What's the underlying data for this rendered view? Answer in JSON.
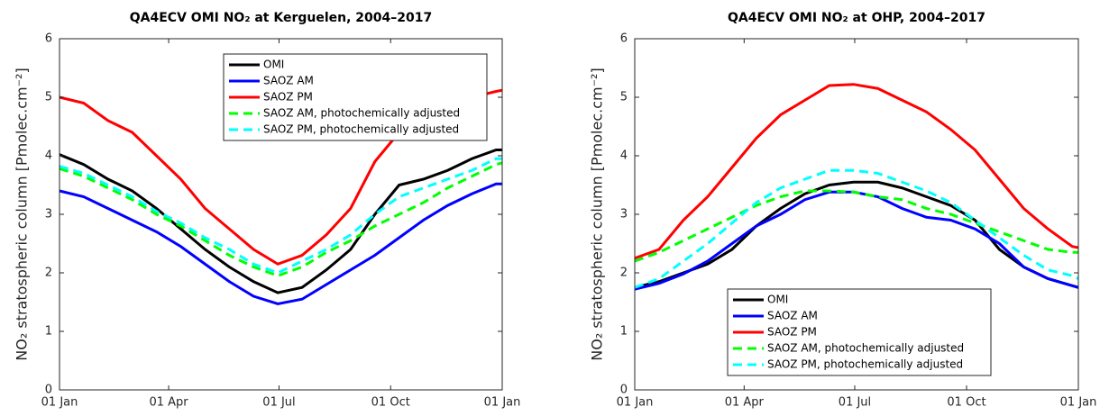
{
  "chart_data": [
    {
      "type": "line",
      "title": "QA4ECV OMI NO₂ at Kerguelen, 2004–2017",
      "y_label": "NO₂ stratospheric column [Pmolec.cm⁻²]",
      "x": [
        0,
        20,
        40,
        60,
        80,
        100,
        120,
        140,
        160,
        180,
        200,
        220,
        240,
        260,
        280,
        300,
        320,
        340,
        360,
        365
      ],
      "xlim": [
        0,
        365
      ],
      "xticks": [
        {
          "value": 0,
          "label": "01 Jan"
        },
        {
          "value": 90,
          "label": "01 Apr"
        },
        {
          "value": 181,
          "label": "01 Jul"
        },
        {
          "value": 273,
          "label": "01 Oct"
        },
        {
          "value": 365,
          "label": "01 Jan"
        }
      ],
      "ylim": [
        0,
        6
      ],
      "yticks": [
        0,
        1,
        2,
        3,
        4,
        5,
        6
      ],
      "grid": false,
      "legend": "upper center",
      "series": [
        {
          "name": "OMI",
          "color": "#000000",
          "style": "solid",
          "values": [
            4.02,
            3.85,
            3.6,
            3.4,
            3.1,
            2.75,
            2.4,
            2.1,
            1.85,
            1.66,
            1.75,
            2.05,
            2.4,
            3.0,
            3.5,
            3.6,
            3.75,
            3.95,
            4.1,
            4.1
          ]
        },
        {
          "name": "SAOZ AM",
          "color": "#0000ff",
          "style": "solid",
          "values": [
            3.4,
            3.3,
            3.1,
            2.9,
            2.7,
            2.45,
            2.15,
            1.85,
            1.6,
            1.47,
            1.55,
            1.8,
            2.05,
            2.3,
            2.6,
            2.9,
            3.15,
            3.35,
            3.52,
            3.52
          ]
        },
        {
          "name": "SAOZ PM",
          "color": "#ff0000",
          "style": "solid",
          "values": [
            5.0,
            4.9,
            4.6,
            4.4,
            4.0,
            3.6,
            3.1,
            2.75,
            2.4,
            2.15,
            2.3,
            2.65,
            3.1,
            3.9,
            4.4,
            4.7,
            4.9,
            5.0,
            5.1,
            5.12
          ]
        },
        {
          "name": "SAOZ AM, photochemically adjusted",
          "color": "#00ff00",
          "style": "dashed",
          "values": [
            3.78,
            3.65,
            3.45,
            3.25,
            3.0,
            2.8,
            2.55,
            2.3,
            2.1,
            1.95,
            2.1,
            2.35,
            2.55,
            2.8,
            3.0,
            3.2,
            3.45,
            3.65,
            3.85,
            3.88
          ]
        },
        {
          "name": "SAOZ PM, photochemically adjusted",
          "color": "#00ffff",
          "style": "dashed",
          "values": [
            3.82,
            3.7,
            3.5,
            3.3,
            3.05,
            2.85,
            2.6,
            2.4,
            2.15,
            2.0,
            2.2,
            2.4,
            2.65,
            3.0,
            3.3,
            3.45,
            3.6,
            3.75,
            3.95,
            3.95
          ]
        }
      ]
    },
    {
      "type": "line",
      "title": "QA4ECV OMI NO₂ at OHP, 2004–2017",
      "y_label": "NO₂ stratospheric column [Pmolec.cm⁻²]",
      "x": [
        0,
        20,
        40,
        60,
        80,
        100,
        120,
        140,
        160,
        180,
        200,
        220,
        240,
        260,
        280,
        300,
        320,
        340,
        360,
        365
      ],
      "xlim": [
        0,
        365
      ],
      "xticks": [
        {
          "value": 0,
          "label": "01 Jan"
        },
        {
          "value": 90,
          "label": "01 Apr"
        },
        {
          "value": 181,
          "label": "01 Jul"
        },
        {
          "value": 273,
          "label": "01 Oct"
        },
        {
          "value": 365,
          "label": "01 Jan"
        }
      ],
      "ylim": [
        0,
        6
      ],
      "yticks": [
        0,
        1,
        2,
        3,
        4,
        5,
        6
      ],
      "grid": false,
      "legend": "lower center",
      "series": [
        {
          "name": "OMI",
          "color": "#000000",
          "style": "solid",
          "values": [
            1.75,
            1.85,
            2.0,
            2.15,
            2.4,
            2.8,
            3.1,
            3.35,
            3.5,
            3.55,
            3.55,
            3.45,
            3.3,
            3.15,
            2.9,
            2.4,
            2.1,
            1.9,
            1.78,
            1.75
          ]
        },
        {
          "name": "SAOZ AM",
          "color": "#0000ff",
          "style": "solid",
          "values": [
            1.72,
            1.82,
            1.98,
            2.2,
            2.5,
            2.8,
            3.0,
            3.25,
            3.38,
            3.38,
            3.3,
            3.1,
            2.95,
            2.9,
            2.75,
            2.5,
            2.1,
            1.9,
            1.78,
            1.75
          ]
        },
        {
          "name": "SAOZ PM",
          "color": "#ff0000",
          "style": "solid",
          "values": [
            2.25,
            2.4,
            2.9,
            3.3,
            3.8,
            4.3,
            4.7,
            4.95,
            5.2,
            5.22,
            5.15,
            4.95,
            4.75,
            4.45,
            4.1,
            3.6,
            3.1,
            2.75,
            2.45,
            2.43
          ]
        },
        {
          "name": "SAOZ AM, photochemically adjusted",
          "color": "#00ff00",
          "style": "dashed",
          "values": [
            2.2,
            2.35,
            2.55,
            2.75,
            2.95,
            3.15,
            3.3,
            3.4,
            3.4,
            3.38,
            3.3,
            3.25,
            3.1,
            3.0,
            2.85,
            2.7,
            2.55,
            2.4,
            2.35,
            2.35
          ]
        },
        {
          "name": "SAOZ PM, photochemically adjusted",
          "color": "#00ffff",
          "style": "dashed",
          "values": [
            1.75,
            1.9,
            2.2,
            2.5,
            2.85,
            3.2,
            3.45,
            3.6,
            3.75,
            3.75,
            3.7,
            3.55,
            3.4,
            3.2,
            2.9,
            2.6,
            2.3,
            2.05,
            1.95,
            1.9
          ]
        }
      ]
    }
  ]
}
